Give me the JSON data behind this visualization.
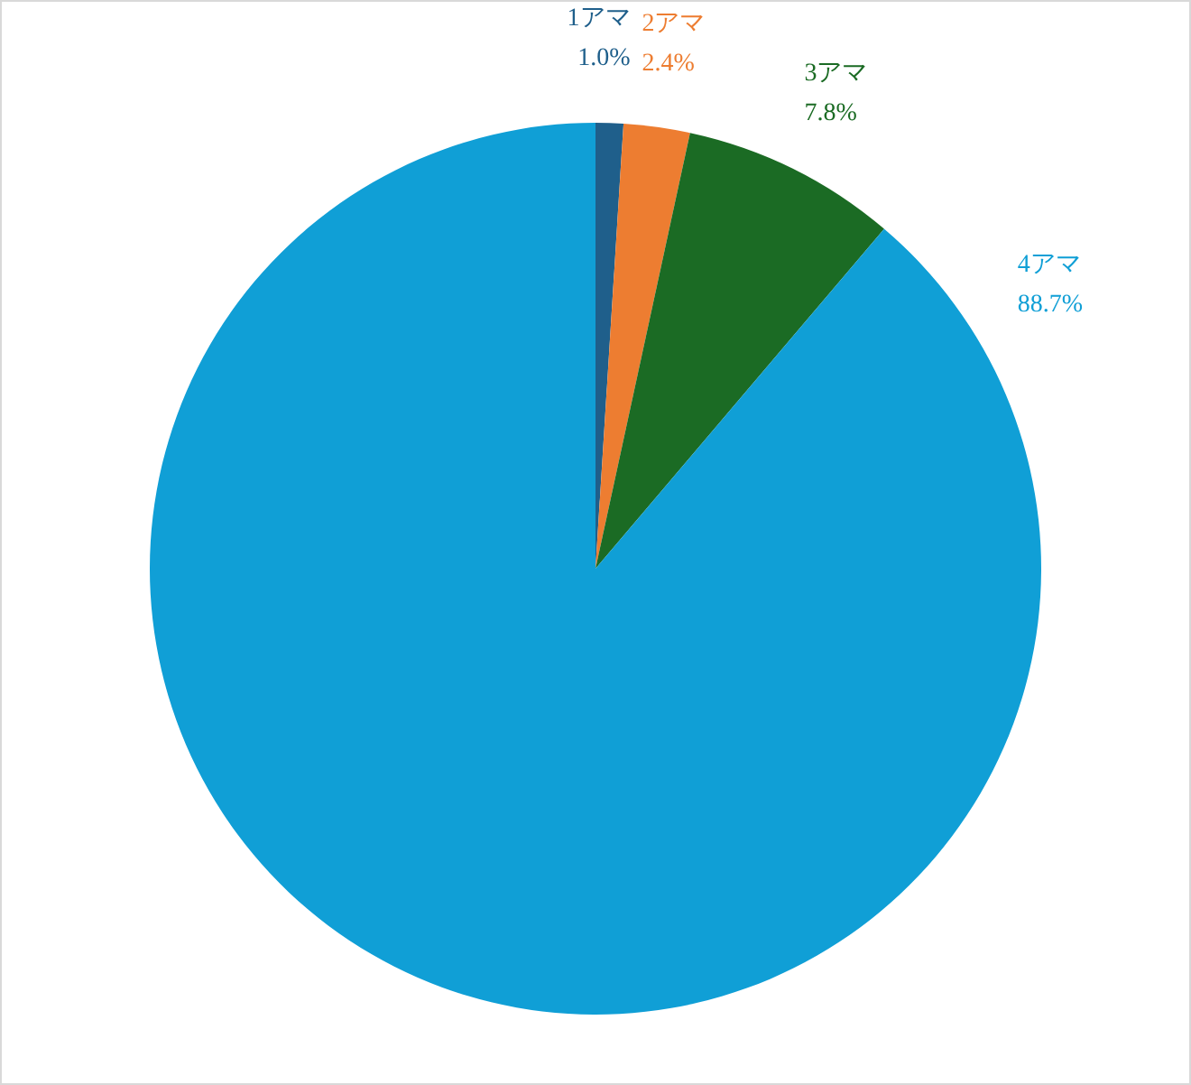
{
  "chart_data": {
    "type": "pie",
    "categories": [
      "1アマ",
      "2アマ",
      "3アマ",
      "4アマ"
    ],
    "values": [
      1.0,
      2.4,
      7.8,
      88.7
    ],
    "colors": [
      "#1f5f8b",
      "#ed7d31",
      "#1b6b24",
      "#109fd6"
    ],
    "value_labels": [
      "1.0%",
      "2.4%",
      "7.8%",
      "88.7%"
    ]
  }
}
